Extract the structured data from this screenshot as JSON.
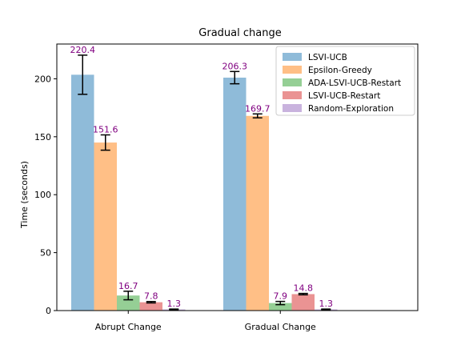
{
  "chart_data": {
    "type": "bar",
    "title": "Gradual change",
    "xlabel": "",
    "ylabel": "Time (seconds)",
    "ylim": [
      0,
      230
    ],
    "yticks": [
      0,
      50,
      100,
      150,
      200
    ],
    "grid": false,
    "legend_position": "top-right",
    "categories": [
      "Abrupt Change",
      "Gradual Change"
    ],
    "series": [
      {
        "name": "LSVI-UCB",
        "color": "#1f77b4",
        "values": [
          203.5,
          201.0
        ],
        "err_low": [
          186.6,
          195.7
        ],
        "err_high": [
          220.4,
          206.3
        ],
        "labels": [
          "220.4",
          "206.3"
        ]
      },
      {
        "name": "Epsilon-Greedy",
        "color": "#ff7f0e",
        "values": [
          145.0,
          168.0
        ],
        "err_low": [
          138.4,
          166.3
        ],
        "err_high": [
          151.6,
          169.7
        ],
        "labels": [
          "151.6",
          "169.7"
        ]
      },
      {
        "name": "ADA-LSVI-UCB-Restart",
        "color": "#2ca02c",
        "values": [
          13.0,
          6.5
        ],
        "err_low": [
          9.3,
          5.1
        ],
        "err_high": [
          16.7,
          7.9
        ],
        "labels": [
          "16.7",
          "7.9"
        ]
      },
      {
        "name": "LSVI-UCB-Restart",
        "color": "#d62728",
        "values": [
          7.2,
          14.2
        ],
        "err_low": [
          6.6,
          13.6
        ],
        "err_high": [
          7.8,
          14.8
        ],
        "labels": [
          "7.8",
          "14.8"
        ]
      },
      {
        "name": "Random-Exploration",
        "color": "#9467bd",
        "values": [
          1.0,
          1.0
        ],
        "err_low": [
          0.7,
          0.7
        ],
        "err_high": [
          1.3,
          1.3
        ],
        "labels": [
          "1.3",
          "1.3"
        ]
      }
    ]
  }
}
